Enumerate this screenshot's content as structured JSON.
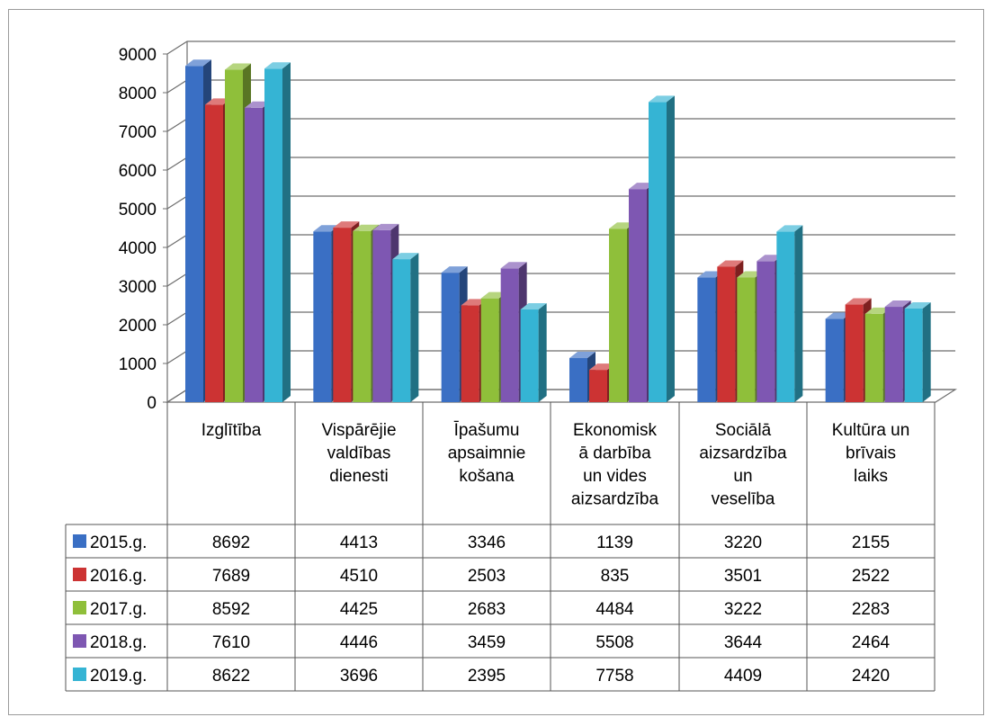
{
  "chart_data": {
    "type": "bar",
    "title": "",
    "xlabel": "",
    "ylabel": "",
    "ylim": [
      0,
      9000
    ],
    "yticks": [
      "0",
      "1000",
      "2000",
      "3000",
      "4000",
      "5000",
      "6000",
      "7000",
      "8000",
      "9000"
    ],
    "grid": true,
    "legend": "data table rows",
    "categories": [
      "Izglītība",
      "Vispārējie valdības dienesti",
      "Īpašumu apsaimniekošana",
      "Ekonomiskā darbība un vides aizsardzība",
      "Sociālā aizsardzība un veselība",
      "Kultūra un brīvais laiks"
    ],
    "category_lines": [
      [
        "Izglītība"
      ],
      [
        "Vispārējie",
        "valdības",
        "dienesti"
      ],
      [
        "Īpašumu",
        "apsaimnie",
        "košana"
      ],
      [
        "Ekonomisk",
        "ā darbība",
        "un vides",
        "aizsardzība"
      ],
      [
        "Sociālā",
        "aizsardzība",
        "un",
        "veselība"
      ],
      [
        "Kultūra un",
        "brīvais",
        "laiks"
      ]
    ],
    "series": [
      {
        "name": "2015.g.",
        "color": "#3a6fc4",
        "values": [
          8692,
          4413,
          3346,
          1139,
          3220,
          2155
        ]
      },
      {
        "name": "2016.g.",
        "color": "#cc3333",
        "values": [
          7689,
          4510,
          2503,
          835,
          3501,
          2522
        ]
      },
      {
        "name": "2017.g.",
        "color": "#8fbf3a",
        "values": [
          8592,
          4425,
          2683,
          4484,
          3222,
          2283
        ]
      },
      {
        "name": "2018.g.",
        "color": "#7e57b2",
        "values": [
          7610,
          4446,
          3459,
          5508,
          3644,
          2464
        ]
      },
      {
        "name": "2019.g.",
        "color": "#35b4d4",
        "values": [
          8622,
          3696,
          2395,
          7758,
          4409,
          2420
        ]
      }
    ]
  }
}
